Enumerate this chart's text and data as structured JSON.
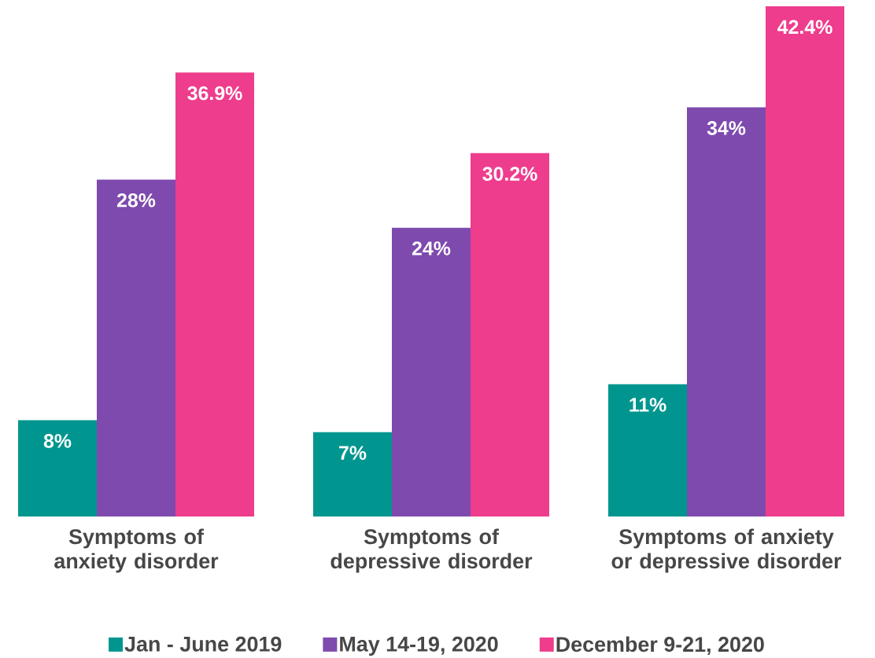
{
  "chart_data": {
    "type": "bar",
    "categories": [
      "Symptoms of anxiety disorder",
      "Symptoms of depressive disorder",
      "Symptoms of anxiety or depressive disorder"
    ],
    "series": [
      {
        "name": "Jan - June 2019",
        "color": "#00968f",
        "values": [
          8,
          7,
          11
        ],
        "value_labels": [
          "8%",
          "7%",
          "11%"
        ]
      },
      {
        "name": "May 14-19, 2020",
        "color": "#7e4aae",
        "values": [
          28,
          24,
          34
        ],
        "value_labels": [
          "28%",
          "24%",
          "34%"
        ]
      },
      {
        "name": "December 9-21, 2020",
        "color": "#ee3d8d",
        "values": [
          36.9,
          30.2,
          42.4
        ],
        "value_labels": [
          "36.9%",
          "30.2%",
          "42.4%"
        ]
      }
    ],
    "ylim": [
      0,
      42.4
    ],
    "legend": "bottom"
  }
}
